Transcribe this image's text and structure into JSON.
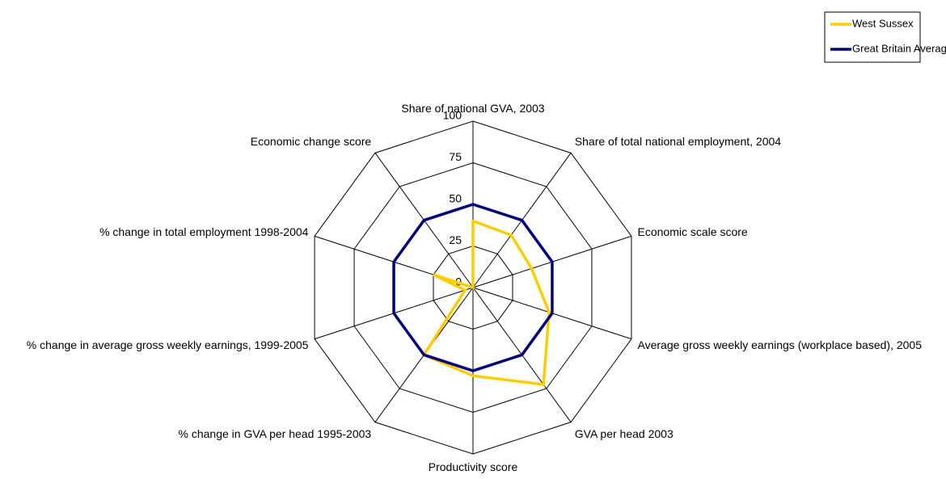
{
  "chart_data": {
    "type": "radar",
    "categories": [
      "Share of national GVA, 2003",
      "Share of total national employment, 2004",
      "Economic scale score",
      "Average gross weekly earnings (workplace based), 2005",
      "GVA per head 2003",
      "Productivity score",
      "% change in GVA per head 1995-2003",
      "% change in average gross weekly earnings, 1999-2005",
      "% change in total employment 1998-2004",
      "Economic change score"
    ],
    "series": [
      {
        "name": "West Sussex",
        "color": "#FFCC00",
        "values": [
          40,
          39,
          37,
          48,
          72,
          53,
          50,
          5,
          25,
          0
        ]
      },
      {
        "name": "Great Britain Average",
        "color": "#000080",
        "values": [
          50,
          50,
          50,
          50,
          50,
          50,
          50,
          50,
          50,
          50
        ]
      }
    ],
    "ylim": [
      0,
      100
    ],
    "yticks": [
      0,
      25,
      50,
      75,
      100
    ],
    "grid": true,
    "legend": "top-right"
  }
}
